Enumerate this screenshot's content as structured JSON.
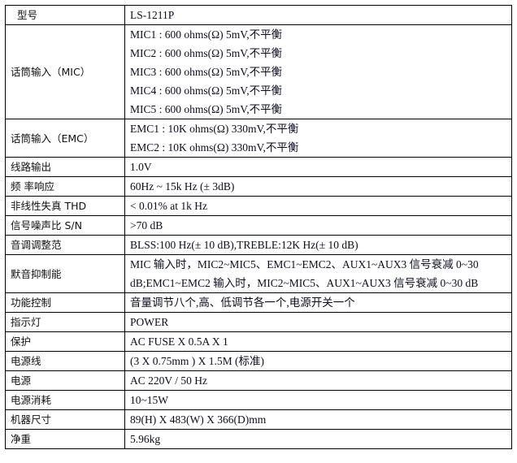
{
  "rows": [
    {
      "label": "型号",
      "values": [
        "LS-1211P"
      ]
    },
    {
      "label": "话筒输入（MIC）",
      "values": [
        "MIC1 : 600 ohms(Ω) 5mV,不平衡",
        "MIC2 : 600 ohms(Ω) 5mV,不平衡",
        "MIC3 : 600 ohms(Ω) 5mV,不平衡",
        "MIC4 : 600 ohms(Ω) 5mV,不平衡",
        "MIC5 : 600 ohms(Ω) 5mV,不平衡"
      ]
    },
    {
      "label": "话筒输入（EMC）",
      "values": [
        "EMC1 : 10K ohms(Ω) 330mV,不平衡",
        "EMC2 : 10K ohms(Ω) 330mV,不平衡"
      ]
    },
    {
      "label": "线路输出",
      "values": [
        "1.0V"
      ]
    },
    {
      "label": "频  率响应",
      "values": [
        "60Hz ~ 15k Hz (± 3dB)"
      ]
    },
    {
      "label": "非线性失真 THD",
      "values": [
        "< 0.01% at 1k Hz"
      ]
    },
    {
      "label": "信号噪声比 S/N",
      "values": [
        ">70 dB"
      ]
    },
    {
      "label": "音调调整范",
      "values": [
        "BLSS:100 Hz(± 10 dB),TREBLE:12K Hz(± 10 dB)"
      ]
    },
    {
      "label": "默音抑制能",
      "values": [
        "MIC 输入时，MIC2~MIC5、EMC1~EMC2、AUX1~AUX3 信号衰减 0~30 dB;EMC1~EMC2 输入时，MIC2~MIC5、AUX1~AUX3 信号衰减 0~30 dB"
      ]
    },
    {
      "label": "功能控制",
      "values": [
        "音量调节八个,高、低调节各一个,电源开关一个"
      ]
    },
    {
      "label": "指示灯",
      "values": [
        "POWER"
      ]
    },
    {
      "label": "保护",
      "values": [
        "AC FUSE X 0.5A X 1"
      ]
    },
    {
      "label": "电源线",
      "values": [
        "(3 X 0.75mm ) X 1.5M (标准)"
      ]
    },
    {
      "label": "电源",
      "values": [
        "AC 220V / 50 Hz"
      ]
    },
    {
      "label": "电源消耗",
      "values": [
        "10~15W"
      ]
    },
    {
      "label": "机器尺寸",
      "values": [
        "89(H) X 483(W) X 366(D)mm"
      ]
    },
    {
      "label": "净重",
      "values": [
        "5.96kg"
      ]
    }
  ]
}
